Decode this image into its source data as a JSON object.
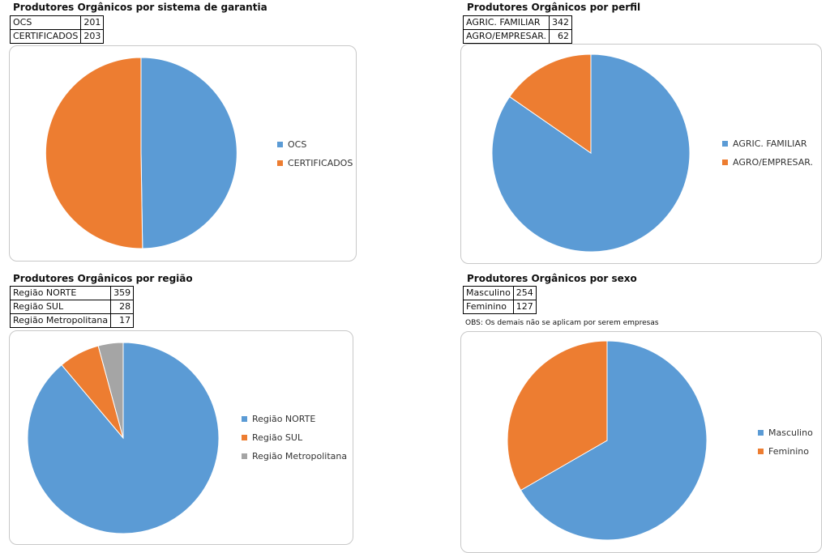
{
  "charts": [
    {
      "title": "Produtores Orgânicos por sistema de garantia",
      "rows": [
        {
          "label": "OCS",
          "value": "201"
        },
        {
          "label": "CERTIFICADOS",
          "value": "203"
        }
      ]
    },
    {
      "title": "Produtores Orgânicos por perfil",
      "rows": [
        {
          "label": "AGRIC. FAMILIAR",
          "value": "342"
        },
        {
          "label": "AGRO/EMPRESAR.",
          "value": "62"
        }
      ]
    },
    {
      "title": "Produtores Orgânicos por região",
      "rows": [
        {
          "label": "Região NORTE",
          "value": "359"
        },
        {
          "label": "Região SUL",
          "value": "28"
        },
        {
          "label": "Região Metropolitana",
          "value": "17"
        }
      ]
    },
    {
      "title": "Produtores Orgânicos por sexo",
      "rows": [
        {
          "label": "Masculino",
          "value": "254"
        },
        {
          "label": "Feminino",
          "value": "127"
        }
      ],
      "note": "OBS: Os demais não se aplicam por serem empresas"
    }
  ],
  "colors": {
    "blue": "#5b9bd5",
    "orange": "#ed7d31",
    "gray": "#a5a5a5"
  },
  "chart_data": [
    {
      "type": "pie",
      "title": "Produtores Orgânicos por sistema de garantia",
      "labels": [
        "OCS",
        "CERTIFICADOS"
      ],
      "values": [
        201,
        203
      ],
      "colors": [
        "#5b9bd5",
        "#ed7d31"
      ],
      "legend": "right"
    },
    {
      "type": "pie",
      "title": "Produtores Orgânicos por perfil",
      "labels": [
        "AGRIC. FAMILIAR",
        "AGRO/EMPRESAR."
      ],
      "values": [
        342,
        62
      ],
      "colors": [
        "#5b9bd5",
        "#ed7d31"
      ],
      "legend": "right"
    },
    {
      "type": "pie",
      "title": "Produtores Orgânicos por região",
      "labels": [
        "Região NORTE",
        "Região SUL",
        "Região Metropolitana"
      ],
      "values": [
        359,
        28,
        17
      ],
      "colors": [
        "#5b9bd5",
        "#ed7d31",
        "#a5a5a5"
      ],
      "legend": "right"
    },
    {
      "type": "pie",
      "title": "Produtores Orgânicos por sexo",
      "labels": [
        "Masculino",
        "Feminino"
      ],
      "values": [
        254,
        127
      ],
      "colors": [
        "#5b9bd5",
        "#ed7d31"
      ],
      "legend": "right"
    }
  ]
}
